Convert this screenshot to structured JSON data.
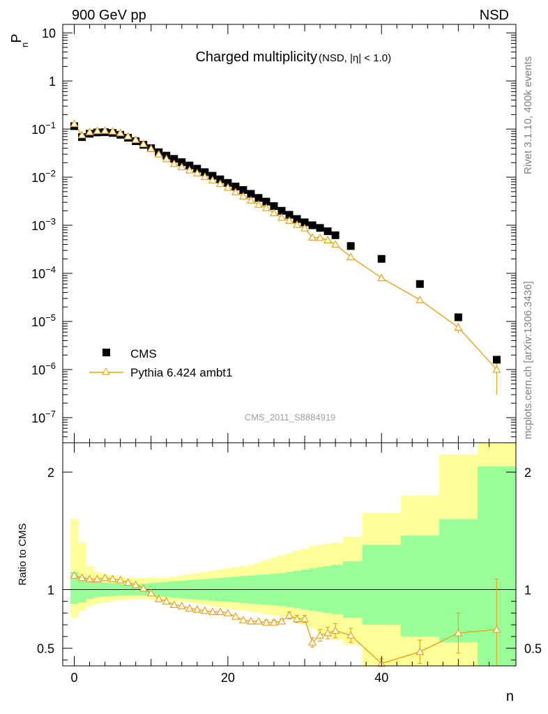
{
  "header": {
    "left": "900 GeV pp",
    "right": "NSD"
  },
  "side_text": {
    "rivet": "Rivet 3.1.10,  400k events",
    "site": "mcplots.cern.ch [arXiv:1306.3436]"
  },
  "colors": {
    "data": "#000000",
    "mc": "#e8a317",
    "band_inner": "#99ff99",
    "band_outer": "#ffff99"
  },
  "chart_data": [
    {
      "type": "scatter",
      "title": "Charged multiplicity",
      "subtitle": "(NSD, |η| < 1.0)",
      "watermark": "CMS_2011_S8884919",
      "ylabel": "P_n",
      "xlabel": "n",
      "yscale": "log",
      "xlim": [
        -1.5,
        57.5
      ],
      "ylim": [
        3e-08,
        15
      ],
      "y_tick_labels": [
        "10^-7",
        "10^-6",
        "10^-5",
        "10^-4",
        "10^-3",
        "10^-2",
        "10^-1",
        "1",
        "10"
      ],
      "legend_position": "bottom-left",
      "series": [
        {
          "name": "CMS",
          "marker": "square",
          "x": [
            0,
            1,
            2,
            3,
            4,
            5,
            6,
            7,
            8,
            9,
            10,
            11,
            12,
            13,
            14,
            15,
            16,
            17,
            18,
            19,
            20,
            21,
            22,
            23,
            24,
            25,
            26,
            27,
            28,
            29,
            30,
            31,
            32,
            33,
            34,
            36,
            40,
            45,
            50,
            55
          ],
          "y": [
            0.115,
            0.068,
            0.08,
            0.085,
            0.086,
            0.083,
            0.076,
            0.066,
            0.056,
            0.047,
            0.04,
            0.033,
            0.028,
            0.024,
            0.0205,
            0.0175,
            0.015,
            0.0127,
            0.0107,
            0.009,
            0.0076,
            0.0064,
            0.0054,
            0.0045,
            0.0037,
            0.0031,
            0.0025,
            0.002,
            0.00165,
            0.00135,
            0.00115,
            0.001,
            0.00088,
            0.00075,
            0.00062,
            0.00037,
            0.0002,
            6e-05,
            1.22e-05,
            1.6e-06
          ]
        },
        {
          "name": "Pythia 6.424 ambt1",
          "marker": "open-triangle",
          "x": [
            0,
            1,
            2,
            3,
            4,
            5,
            6,
            7,
            8,
            9,
            10,
            11,
            12,
            13,
            14,
            15,
            16,
            17,
            18,
            19,
            20,
            21,
            22,
            23,
            24,
            25,
            26,
            27,
            28,
            29,
            30,
            31,
            32,
            33,
            34,
            36,
            40,
            45,
            50,
            55
          ],
          "y": [
            0.129,
            0.075,
            0.087,
            0.092,
            0.093,
            0.09,
            0.083,
            0.071,
            0.06,
            0.049,
            0.039,
            0.03,
            0.024,
            0.019,
            0.0163,
            0.014,
            0.0121,
            0.0102,
            0.0086,
            0.0073,
            0.0061,
            0.0049,
            0.004,
            0.0033,
            0.0027,
            0.0023,
            0.0018,
            0.00145,
            0.00125,
            0.00103,
            0.00087,
            0.00056,
            0.00055,
            0.00049,
            0.0004,
            0.00022,
            8e-05,
            2.8e-05,
            7.5e-06,
            1e-06
          ],
          "yerr_up": [
            0,
            0,
            0,
            0,
            0,
            0,
            0,
            0,
            0,
            0,
            0,
            0,
            0,
            0,
            0,
            0,
            0,
            0,
            0,
            0,
            0,
            0,
            0,
            0,
            0,
            0,
            0,
            0,
            0,
            0,
            0,
            0,
            0,
            0,
            0,
            0,
            0,
            0,
            1.8e-06,
            6e-07
          ],
          "yerr_down": [
            0,
            0,
            0,
            0,
            0,
            0,
            0,
            0,
            0,
            0,
            0,
            0,
            0,
            0,
            0,
            0,
            0,
            0,
            0,
            0,
            0,
            0,
            0,
            0,
            0,
            0,
            0,
            0,
            0,
            0,
            0,
            0,
            0,
            0,
            0,
            0,
            0,
            0,
            1.8e-06,
            7e-07
          ]
        }
      ]
    },
    {
      "type": "line",
      "ylabel": "Ratio to CMS",
      "xlabel": "n",
      "xlim": [
        -1.5,
        57.5
      ],
      "ylim": [
        0.35,
        2.25
      ],
      "x_ticks": [
        0,
        20,
        40
      ],
      "y_ticks": [
        0.5,
        1,
        2
      ],
      "reference_line": 1,
      "bands": {
        "bin_edges": [
          -0.5,
          0.5,
          1.5,
          2.5,
          3.5,
          4.5,
          5.5,
          6.5,
          7.5,
          8.5,
          9.5,
          10.5,
          11.5,
          12.5,
          13.5,
          14.5,
          15.5,
          16.5,
          17.5,
          18.5,
          19.5,
          20.5,
          21.5,
          22.5,
          23.5,
          24.5,
          25.5,
          26.5,
          27.5,
          28.5,
          29.5,
          30.5,
          31.5,
          32.5,
          33.5,
          35,
          37.5,
          42.5,
          47.5,
          52.5,
          57.5
        ],
        "inner_lo": [
          0.88,
          0.89,
          0.92,
          0.935,
          0.94,
          0.945,
          0.95,
          0.95,
          0.95,
          0.95,
          0.945,
          0.94,
          0.935,
          0.93,
          0.925,
          0.92,
          0.915,
          0.91,
          0.905,
          0.9,
          0.895,
          0.89,
          0.885,
          0.88,
          0.875,
          0.87,
          0.865,
          0.86,
          0.85,
          0.84,
          0.83,
          0.82,
          0.81,
          0.8,
          0.79,
          0.76,
          0.7,
          0.6,
          0.55,
          0.35
        ],
        "inner_hi": [
          1.15,
          1.11,
          1.08,
          1.065,
          1.06,
          1.055,
          1.05,
          1.05,
          1.05,
          1.05,
          1.055,
          1.06,
          1.065,
          1.07,
          1.075,
          1.08,
          1.085,
          1.09,
          1.095,
          1.1,
          1.105,
          1.11,
          1.115,
          1.12,
          1.125,
          1.13,
          1.135,
          1.14,
          1.15,
          1.16,
          1.17,
          1.18,
          1.19,
          1.2,
          1.21,
          1.24,
          1.38,
          1.46,
          1.6,
          2.05
        ],
        "outer_lo": [
          0.76,
          0.82,
          0.86,
          0.88,
          0.89,
          0.9,
          0.91,
          0.915,
          0.92,
          0.92,
          0.915,
          0.91,
          0.905,
          0.9,
          0.895,
          0.89,
          0.88,
          0.87,
          0.86,
          0.85,
          0.84,
          0.83,
          0.82,
          0.81,
          0.8,
          0.79,
          0.78,
          0.77,
          0.75,
          0.72,
          0.7,
          0.67,
          0.63,
          0.6,
          0.57,
          0.53,
          0.35,
          0.35,
          0.35,
          0.35
        ],
        "outer_hi": [
          1.6,
          1.4,
          1.2,
          1.15,
          1.13,
          1.12,
          1.11,
          1.1,
          1.1,
          1.1,
          1.1,
          1.1,
          1.1,
          1.11,
          1.12,
          1.13,
          1.14,
          1.15,
          1.16,
          1.17,
          1.18,
          1.19,
          1.2,
          1.21,
          1.23,
          1.25,
          1.27,
          1.29,
          1.31,
          1.33,
          1.35,
          1.37,
          1.38,
          1.39,
          1.4,
          1.45,
          1.65,
          1.8,
          2.15,
          2.25
        ]
      },
      "series": [
        {
          "name": "Pythia 6.424 ambt1",
          "marker": "open-triangle",
          "x": [
            0,
            1,
            2,
            3,
            4,
            5,
            6,
            7,
            8,
            9,
            10,
            11,
            12,
            13,
            14,
            15,
            16,
            17,
            18,
            19,
            20,
            21,
            22,
            23,
            24,
            25,
            26,
            27,
            28,
            29,
            30,
            31,
            32,
            33,
            34,
            36,
            40,
            45,
            50,
            55
          ],
          "y": [
            1.12,
            1.1,
            1.09,
            1.09,
            1.1,
            1.09,
            1.08,
            1.06,
            1.04,
            1.01,
            0.97,
            0.92,
            0.9,
            0.87,
            0.86,
            0.84,
            0.83,
            0.82,
            0.81,
            0.81,
            0.8,
            0.77,
            0.74,
            0.73,
            0.73,
            0.72,
            0.72,
            0.73,
            0.78,
            0.75,
            0.75,
            0.55,
            0.61,
            0.63,
            0.65,
            0.61,
            0.37,
            0.47,
            0.63,
            0.66
          ],
          "yerr": [
            0,
            0,
            0,
            0,
            0,
            0,
            0,
            0,
            0,
            0,
            0,
            0,
            0,
            0,
            0,
            0,
            0,
            0,
            0,
            0,
            0,
            0,
            0,
            0,
            0,
            0.02,
            0.02,
            0.02,
            0.03,
            0.03,
            0.03,
            0.04,
            0.05,
            0.05,
            0.06,
            0.06,
            0.04,
            0.1,
            0.17,
            0.43
          ]
        }
      ]
    }
  ]
}
